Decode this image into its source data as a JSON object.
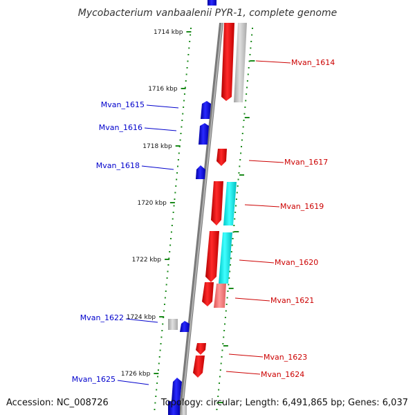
{
  "title": "Mycobacterium vanbaalenii PYR-1, complete genome",
  "footer": {
    "accession": "Accession: NC_008726",
    "summary": "Topology: circular; Length: 6,491,865 bp; Genes: 6,037"
  },
  "scale_labels": [
    "1714 kbp",
    "1716 kbp",
    "1718 kbp",
    "1720 kbp",
    "1722 kbp",
    "1724 kbp",
    "1726 kbp"
  ],
  "genes_left": [
    {
      "name": "Mvan_1615",
      "color": "#0000cc"
    },
    {
      "name": "Mvan_1616",
      "color": "#0000cc"
    },
    {
      "name": "Mvan_1618",
      "color": "#0000cc"
    },
    {
      "name": "Mvan_1622",
      "color": "#0000cc"
    },
    {
      "name": "Mvan_1625",
      "color": "#0000cc"
    }
  ],
  "genes_right": [
    {
      "name": "Mvan_1614",
      "color": "#cc0000"
    },
    {
      "name": "Mvan_1617",
      "color": "#cc0000"
    },
    {
      "name": "Mvan_1619",
      "color": "#cc0000"
    },
    {
      "name": "Mvan_1620",
      "color": "#cc0000"
    },
    {
      "name": "Mvan_1621",
      "color": "#cc0000"
    },
    {
      "name": "Mvan_1623",
      "color": "#cc0000"
    },
    {
      "name": "Mvan_1624",
      "color": "#cc0000"
    }
  ],
  "colors": {
    "forward_gene": "#ff0000",
    "reverse_gene": "#0000ff",
    "rna_feature": "#00e5e5",
    "pseudo_feature": "#b0b0b0",
    "backbone": "#808080",
    "tick": "#1a8a1a"
  }
}
